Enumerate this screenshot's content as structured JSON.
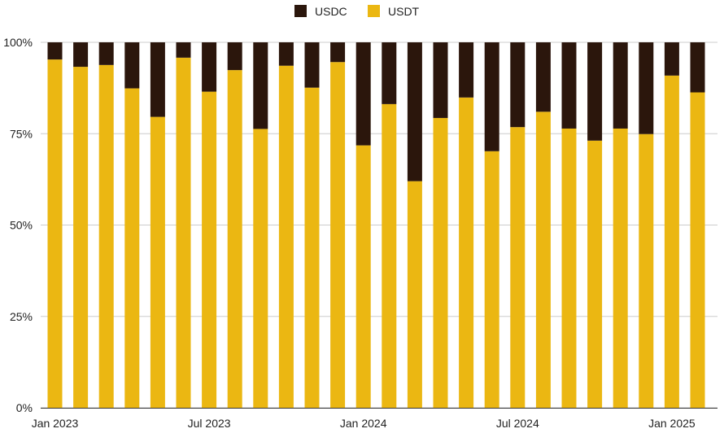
{
  "colors": {
    "usdc": "#2B160C",
    "usdt": "#EBB712",
    "grid": "#CCCCCC",
    "text": "#222222"
  },
  "chart_data": {
    "type": "bar",
    "stacked": true,
    "title": "",
    "xlabel": "",
    "ylabel": "",
    "ylim": [
      0,
      100
    ],
    "y_ticks": [
      "0%",
      "25%",
      "50%",
      "75%",
      "100%"
    ],
    "y_tick_values": [
      0,
      25,
      50,
      75,
      100
    ],
    "legend": [
      "USDC",
      "USDT"
    ],
    "legend_position": "top-center",
    "x_tick_labels": [
      {
        "index": 0,
        "label": "Jan 2023"
      },
      {
        "index": 6,
        "label": "Jul 2023"
      },
      {
        "index": 12,
        "label": "Jan 2024"
      },
      {
        "index": 18,
        "label": "Jul 2024"
      },
      {
        "index": 24,
        "label": "Jan 2025"
      }
    ],
    "categories": [
      "2023-01",
      "2023-02",
      "2023-03",
      "2023-04",
      "2023-05",
      "2023-06",
      "2023-07",
      "2023-08",
      "2023-09",
      "2023-10",
      "2023-11",
      "2023-12",
      "2024-01",
      "2024-02",
      "2024-03",
      "2024-04",
      "2024-05",
      "2024-06",
      "2024-07",
      "2024-08",
      "2024-09",
      "2024-10",
      "2024-11",
      "2024-12",
      "2025-01",
      "2025-02"
    ],
    "series": [
      {
        "name": "USDT",
        "values": [
          95.3,
          93.3,
          93.8,
          87.4,
          79.6,
          95.8,
          86.5,
          92.4,
          76.3,
          93.6,
          87.6,
          94.6,
          71.8,
          83.1,
          62.0,
          79.3,
          84.9,
          70.2,
          76.8,
          81.0,
          76.4,
          73.1,
          76.4,
          74.9,
          90.9,
          86.3
        ]
      },
      {
        "name": "USDC",
        "values": [
          4.7,
          6.7,
          6.2,
          12.6,
          20.4,
          4.2,
          13.5,
          7.6,
          23.7,
          6.4,
          12.4,
          5.4,
          28.2,
          16.9,
          38.0,
          20.7,
          15.1,
          29.8,
          23.2,
          19.0,
          23.6,
          26.9,
          23.6,
          25.1,
          9.1,
          13.7
        ]
      }
    ]
  }
}
